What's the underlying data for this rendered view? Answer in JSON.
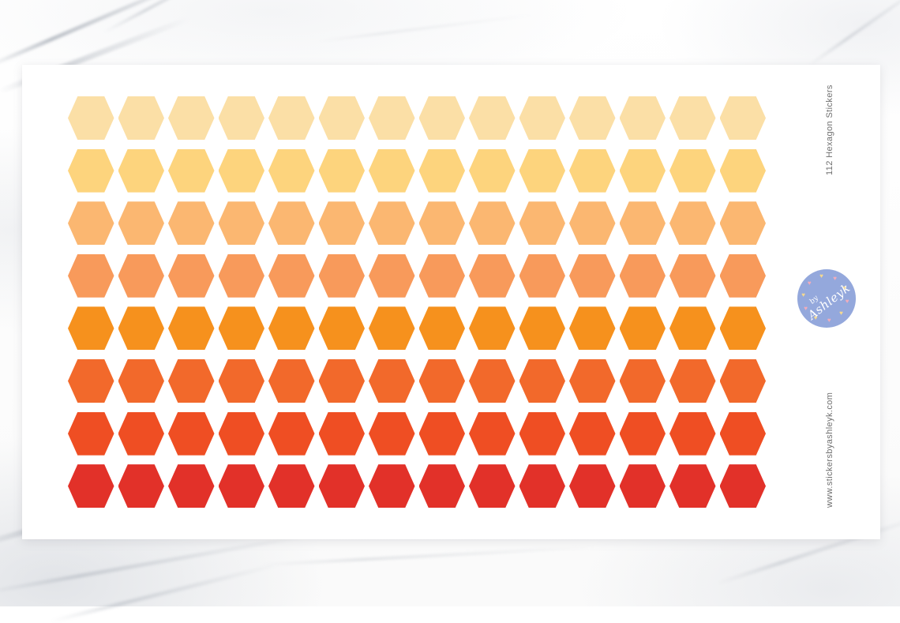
{
  "product": {
    "title": "112 Hexagon Stickers",
    "website": "www.stickersbyashleyk.com",
    "side_text_color": "#6F6F6F"
  },
  "sticker_sheet": {
    "rows": 8,
    "columns": 14,
    "total_stickers": 112,
    "row_colors": [
      "#FBDFA6",
      "#FDD47D",
      "#FBB771",
      "#F89A5B",
      "#F6911D",
      "#F2692B",
      "#EF4E23",
      "#E23129"
    ]
  },
  "logo": {
    "text_top": "by",
    "text_main": "Ashleyk",
    "circle_color": "#94A8DC",
    "text_color": "#FFFFFF",
    "heart_count": 10,
    "heart_colors": [
      "#F2ACBB",
      "#F5D98F"
    ]
  }
}
